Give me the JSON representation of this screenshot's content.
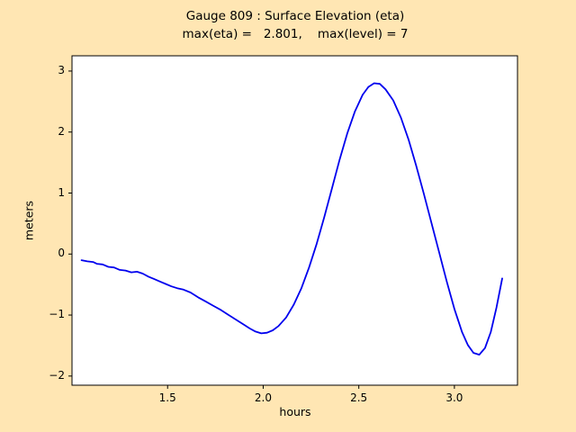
{
  "figure": {
    "background_color": "#ffe6b3",
    "axes_background": "#ffffff",
    "axes_edge_color": "#000000"
  },
  "chart_data": {
    "type": "line",
    "title": "Gauge 809 : Surface Elevation (eta)",
    "subtitle": "max(eta) =   2.801,    max(level) = 7",
    "xlabel": "hours",
    "ylabel": "meters",
    "xlim": [
      1.0,
      3.33
    ],
    "ylim": [
      -2.15,
      3.25
    ],
    "xticks": [
      1.5,
      2.0,
      2.5,
      3.0
    ],
    "xtick_labels": [
      "1.5",
      "2.0",
      "2.5",
      "3.0"
    ],
    "yticks": [
      -2,
      -1,
      0,
      1,
      2,
      3
    ],
    "ytick_labels": [
      "−2",
      "−1",
      "0",
      "1",
      "2",
      "3"
    ],
    "grid": false,
    "legend": false,
    "max_eta": 2.801,
    "max_level": 7,
    "line_color": "#0000ee",
    "line_width": 1.8,
    "series": [
      {
        "name": "eta",
        "x": [
          1.05,
          1.08,
          1.11,
          1.13,
          1.16,
          1.19,
          1.22,
          1.25,
          1.28,
          1.31,
          1.34,
          1.37,
          1.4,
          1.43,
          1.46,
          1.49,
          1.52,
          1.55,
          1.58,
          1.62,
          1.66,
          1.7,
          1.74,
          1.78,
          1.82,
          1.86,
          1.9,
          1.93,
          1.96,
          1.99,
          2.02,
          2.05,
          2.08,
          2.12,
          2.16,
          2.2,
          2.24,
          2.28,
          2.32,
          2.36,
          2.4,
          2.44,
          2.48,
          2.52,
          2.55,
          2.58,
          2.61,
          2.64,
          2.68,
          2.72,
          2.76,
          2.8,
          2.84,
          2.88,
          2.92,
          2.96,
          3.0,
          3.04,
          3.07,
          3.1,
          3.13,
          3.16,
          3.19,
          3.22,
          3.25
        ],
        "y": [
          -0.1,
          -0.12,
          -0.13,
          -0.16,
          -0.17,
          -0.21,
          -0.22,
          -0.26,
          -0.27,
          -0.3,
          -0.29,
          -0.32,
          -0.37,
          -0.41,
          -0.45,
          -0.49,
          -0.53,
          -0.56,
          -0.58,
          -0.63,
          -0.71,
          -0.78,
          -0.85,
          -0.92,
          -1.0,
          -1.08,
          -1.16,
          -1.22,
          -1.27,
          -1.3,
          -1.29,
          -1.25,
          -1.18,
          -1.04,
          -0.83,
          -0.56,
          -0.22,
          0.17,
          0.61,
          1.08,
          1.55,
          1.98,
          2.34,
          2.61,
          2.74,
          2.8,
          2.79,
          2.7,
          2.52,
          2.24,
          1.88,
          1.45,
          0.99,
          0.51,
          0.03,
          -0.45,
          -0.9,
          -1.28,
          -1.49,
          -1.62,
          -1.65,
          -1.54,
          -1.28,
          -0.88,
          -0.4
        ]
      }
    ]
  }
}
